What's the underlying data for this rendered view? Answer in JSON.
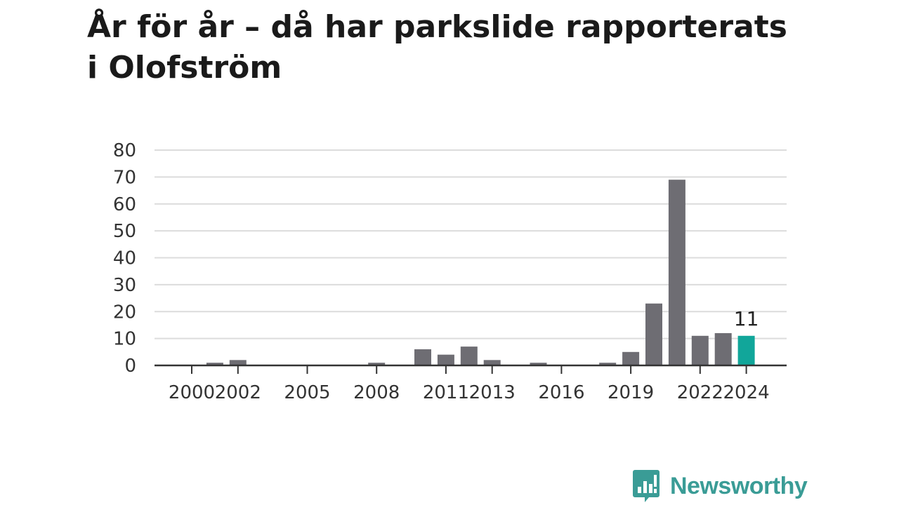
{
  "title_line1": "År för år – då har parkslide rapporterats",
  "title_line2": "i Olofström",
  "brand": {
    "name": "Newsworthy",
    "color": "#3a9c96"
  },
  "colors": {
    "bar": "#6e6d73",
    "highlight": "#11a69a",
    "grid": "#dcdcdc",
    "axis": "#333333"
  },
  "chart_data": {
    "type": "bar",
    "categories": [
      "2000",
      "2001",
      "2002",
      "2003",
      "2004",
      "2005",
      "2006",
      "2007",
      "2008",
      "2009",
      "2010",
      "2011",
      "2012",
      "2013",
      "2014",
      "2015",
      "2016",
      "2017",
      "2018",
      "2019",
      "2020",
      "2021",
      "2022",
      "2023",
      "2024"
    ],
    "values": [
      0,
      1,
      2,
      0,
      0,
      0,
      0,
      0,
      1,
      0,
      6,
      4,
      7,
      2,
      0,
      1,
      0,
      0,
      1,
      5,
      23,
      69,
      11,
      12,
      11
    ],
    "x_tick_labels": [
      "2000",
      "2002",
      "2005",
      "2008",
      "2011",
      "2013",
      "2016",
      "2019",
      "2022",
      "2024"
    ],
    "y_ticks": [
      0,
      10,
      20,
      30,
      40,
      50,
      60,
      70,
      80
    ],
    "ylim": [
      0,
      80
    ],
    "highlight_category": "2024",
    "data_label": "11",
    "grid": true,
    "legend": "none"
  }
}
